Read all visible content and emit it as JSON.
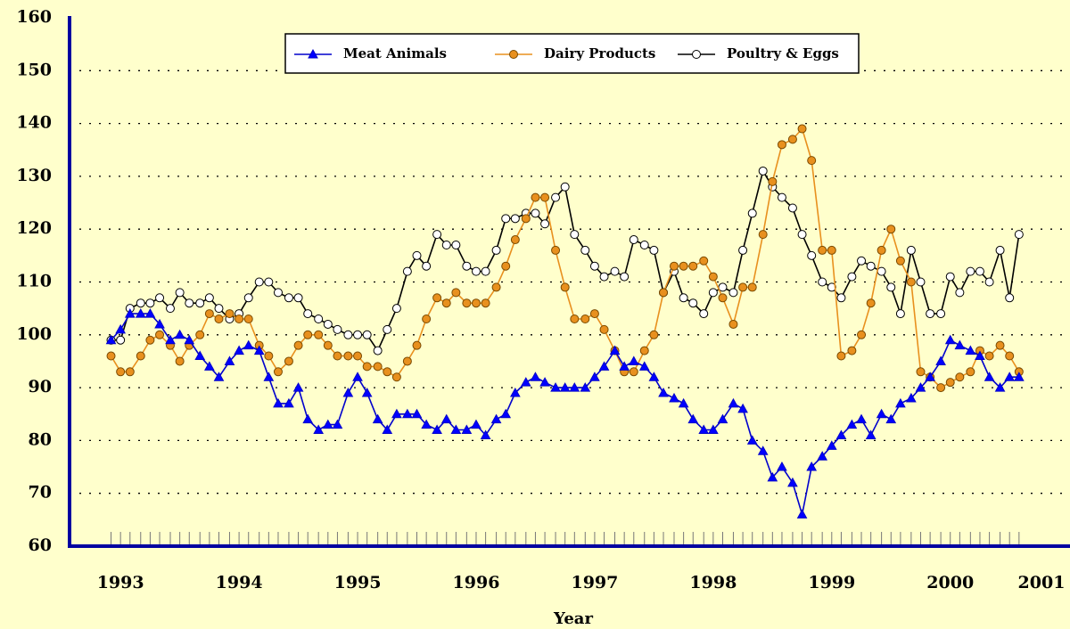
{
  "chart_data": {
    "type": "line",
    "x_label": "Year",
    "x": [
      1992.92,
      1993.0,
      1993.08,
      1993.17,
      1993.25,
      1993.33,
      1993.42,
      1993.5,
      1993.58,
      1993.67,
      1993.75,
      1993.83,
      1993.92,
      1994.0,
      1994.08,
      1994.17,
      1994.25,
      1994.33,
      1994.42,
      1994.5,
      1994.58,
      1994.67,
      1994.75,
      1994.83,
      1994.92,
      1995.0,
      1995.08,
      1995.17,
      1995.25,
      1995.33,
      1995.42,
      1995.5,
      1995.58,
      1995.67,
      1995.75,
      1995.83,
      1995.92,
      1996.0,
      1996.08,
      1996.17,
      1996.25,
      1996.33,
      1996.42,
      1996.5,
      1996.58,
      1996.67,
      1996.75,
      1996.83,
      1996.92,
      1997.0,
      1997.08,
      1997.17,
      1997.25,
      1997.33,
      1997.42,
      1997.5,
      1997.58,
      1997.67,
      1997.75,
      1997.83,
      1997.92,
      1998.0,
      1998.08,
      1998.17,
      1998.25,
      1998.33,
      1998.42,
      1998.5,
      1998.58,
      1998.67,
      1998.75,
      1998.83,
      1998.92,
      1999.0,
      1999.08,
      1999.17,
      1999.25,
      1999.33,
      1999.42,
      1999.5,
      1999.58,
      1999.67,
      1999.75,
      1999.83,
      1999.92,
      2000.0,
      2000.08,
      2000.17,
      2000.25,
      2000.33,
      2000.42,
      2000.5,
      2000.58
    ],
    "series": [
      {
        "name": "Meat Animals",
        "color": "#0000cc",
        "marker": "triangle",
        "values": [
          99,
          101,
          104,
          104,
          104,
          102,
          99,
          100,
          99,
          96,
          94,
          92,
          95,
          97,
          98,
          97,
          92,
          87,
          87,
          90,
          84,
          82,
          83,
          83,
          89,
          92,
          89,
          84,
          82,
          85,
          85,
          85,
          83,
          82,
          84,
          82,
          82,
          83,
          81,
          84,
          85,
          89,
          91,
          92,
          91,
          90,
          90,
          90,
          90,
          92,
          94,
          97,
          94,
          95,
          94,
          92,
          89,
          88,
          87,
          84,
          82,
          82,
          84,
          87,
          86,
          80,
          78,
          73,
          75,
          72,
          66,
          75,
          77,
          79,
          81,
          83,
          84,
          81,
          85,
          84,
          87,
          88,
          90,
          92,
          95,
          99,
          98,
          97,
          96,
          92,
          90,
          92,
          92
        ]
      },
      {
        "name": "Dairy Products",
        "color": "#e8901e",
        "marker": "circle",
        "values": [
          96,
          93,
          93,
          96,
          99,
          100,
          98,
          95,
          98,
          100,
          104,
          103,
          104,
          103,
          103,
          98,
          96,
          93,
          95,
          98,
          100,
          100,
          98,
          96,
          96,
          96,
          94,
          94,
          93,
          92,
          95,
          98,
          103,
          107,
          106,
          108,
          106,
          106,
          106,
          109,
          113,
          118,
          122,
          126,
          126,
          116,
          109,
          103,
          103,
          104,
          101,
          97,
          93,
          93,
          97,
          100,
          108,
          113,
          113,
          113,
          114,
          111,
          107,
          102,
          109,
          109,
          119,
          129,
          136,
          137,
          139,
          133,
          116,
          116,
          96,
          97,
          100,
          106,
          116,
          120,
          114,
          110,
          93,
          92,
          90,
          91,
          92,
          93,
          97,
          96,
          98,
          96,
          93
        ]
      },
      {
        "name": "Poultry & Eggs",
        "color": "#000000",
        "marker": "open-circle",
        "values": [
          99,
          99,
          105,
          106,
          106,
          107,
          105,
          108,
          106,
          106,
          107,
          105,
          103,
          104,
          107,
          110,
          110,
          108,
          107,
          107,
          104,
          103,
          102,
          101,
          100,
          100,
          100,
          97,
          101,
          105,
          112,
          115,
          113,
          119,
          117,
          117,
          113,
          112,
          112,
          116,
          122,
          122,
          123,
          123,
          121,
          126,
          128,
          119,
          116,
          113,
          111,
          112,
          111,
          118,
          117,
          116,
          108,
          112,
          107,
          106,
          104,
          108,
          109,
          108,
          116,
          123,
          131,
          128,
          126,
          124,
          119,
          115,
          110,
          109,
          107,
          111,
          114,
          113,
          112,
          109,
          104,
          116,
          110,
          104,
          104,
          111,
          108,
          112,
          112,
          110,
          116,
          107,
          119
        ]
      }
    ],
    "xlim": [
      1992.57,
      2001.01
    ],
    "xticks": [
      1993,
      1994,
      1995,
      1996,
      1997,
      1998,
      1999,
      2000,
      2001
    ],
    "ylim": [
      60,
      160
    ],
    "yticks": [
      60,
      70,
      80,
      90,
      100,
      110,
      120,
      130,
      140,
      150,
      160
    ],
    "grid": true,
    "legend": "top"
  }
}
